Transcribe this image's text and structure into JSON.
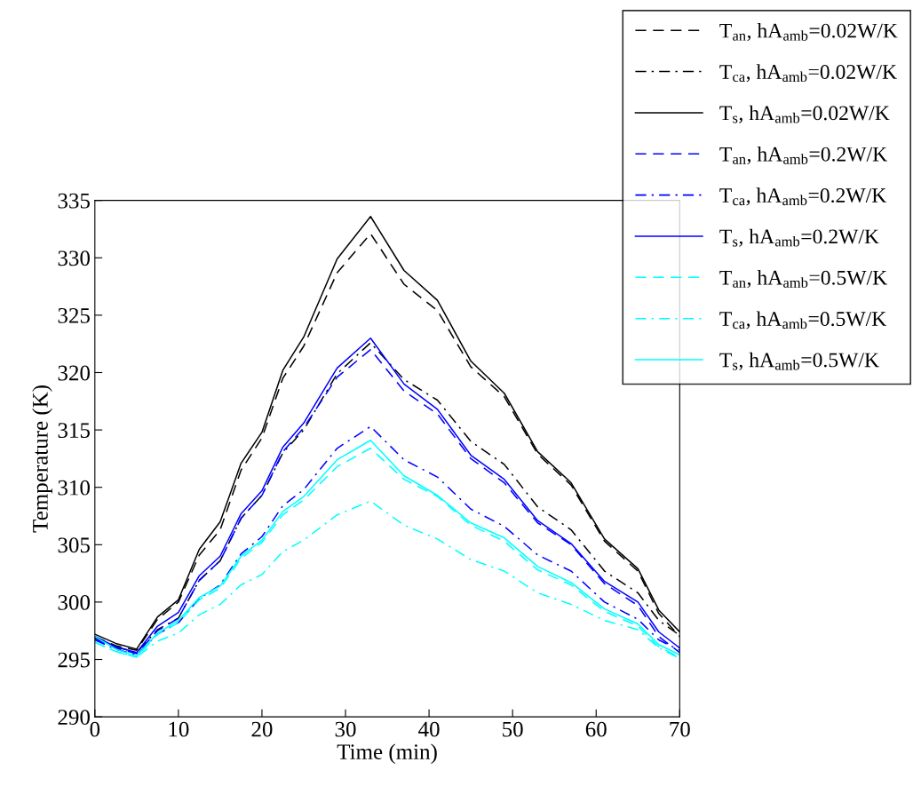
{
  "chart_data": {
    "type": "line",
    "xlabel": "Time (min)",
    "ylabel": "Temperature (K)",
    "x": [
      0,
      2.5,
      5,
      7.5,
      10,
      12.5,
      15,
      17.5,
      20,
      22.5,
      25,
      29,
      33,
      37,
      41,
      45,
      49,
      53,
      57,
      61,
      65,
      67.5,
      70
    ],
    "xlim": [
      0,
      70
    ],
    "xticks": [
      0,
      10,
      20,
      30,
      40,
      50,
      60,
      70
    ],
    "ylim": [
      290,
      335
    ],
    "yticks": [
      290,
      295,
      300,
      305,
      310,
      315,
      320,
      325,
      330,
      335
    ],
    "grid": false,
    "legend": "top right",
    "marker": "none",
    "series": [
      {
        "name": "T$_{an}$, hA$_{amb}$=0.02W/K",
        "color": "#000000",
        "line_style": "dashed",
        "values": [
          297.0,
          296.2,
          295.8,
          298.5,
          300.0,
          304.1,
          306.3,
          311.5,
          314.3,
          319.5,
          322.3,
          328.7,
          332.1,
          327.7,
          325.4,
          320.5,
          317.9,
          312.9,
          310.2,
          305.3,
          302.7,
          299.0,
          297.0
        ]
      },
      {
        "name": "T$_{ca}$, hA$_{amb}$=0.02W/K",
        "color": "#000000",
        "line_style": "dashdot",
        "values": [
          296.9,
          296.1,
          295.6,
          297.6,
          298.6,
          301.9,
          303.6,
          307.3,
          309.3,
          313.0,
          315.0,
          319.9,
          322.6,
          319.4,
          317.6,
          314.0,
          312.0,
          308.3,
          306.3,
          302.7,
          300.8,
          298.4,
          297.1
        ]
      },
      {
        "name": "T$_{s}$, hA$_{amb}$=0.02W/K",
        "color": "#000000",
        "line_style": "solid",
        "values": [
          297.2,
          296.4,
          295.9,
          298.7,
          300.2,
          304.6,
          307.0,
          312.1,
          314.8,
          320.2,
          323.1,
          329.9,
          333.6,
          328.9,
          326.3,
          321.0,
          318.2,
          313.1,
          310.4,
          305.5,
          302.9,
          299.3,
          297.4
        ]
      },
      {
        "name": "T$_{an}$, hA$_{amb}$=0.2W/K",
        "color": "#0000ff",
        "line_style": "dashed",
        "values": [
          296.8,
          296.0,
          295.5,
          297.5,
          298.6,
          301.9,
          303.6,
          307.3,
          309.3,
          313.1,
          315.2,
          319.6,
          322.0,
          318.4,
          316.4,
          312.5,
          310.4,
          306.9,
          305.0,
          301.6,
          299.7,
          297.0,
          295.6
        ]
      },
      {
        "name": "T$_{ca}$, hA$_{amb}$=0.2W/K",
        "color": "#0000ff",
        "line_style": "dashdot",
        "values": [
          296.7,
          295.9,
          295.4,
          297.2,
          298.2,
          300.3,
          301.5,
          304.2,
          305.7,
          308.4,
          309.8,
          313.4,
          315.3,
          312.4,
          310.9,
          308.1,
          306.6,
          304.1,
          302.7,
          300.0,
          298.5,
          296.7,
          295.8
        ]
      },
      {
        "name": "T$_{s}$, hA$_{amb}$=0.2W/K",
        "color": "#0000ff",
        "line_style": "solid",
        "values": [
          297.0,
          296.1,
          295.6,
          297.9,
          299.1,
          302.3,
          304.0,
          307.7,
          309.7,
          313.5,
          315.6,
          320.4,
          323.0,
          319.0,
          316.8,
          312.8,
          310.7,
          307.1,
          305.1,
          301.8,
          300.0,
          297.4,
          296.0
        ]
      },
      {
        "name": "T$_{an}$, hA$_{amb}$=0.5W/K",
        "color": "#00ffff",
        "line_style": "dashed",
        "values": [
          296.5,
          295.7,
          295.2,
          297.2,
          298.2,
          300.2,
          301.2,
          303.8,
          305.2,
          307.6,
          308.9,
          311.8,
          313.4,
          310.7,
          309.2,
          306.7,
          305.3,
          302.8,
          301.5,
          299.2,
          297.9,
          296.1,
          295.2
        ]
      },
      {
        "name": "T$_{ca}$, hA$_{amb}$=0.5W/K",
        "color": "#00ffff",
        "line_style": "dashdot",
        "values": [
          296.5,
          295.7,
          295.2,
          296.6,
          297.3,
          298.9,
          299.8,
          301.5,
          302.4,
          304.4,
          305.4,
          307.6,
          308.8,
          306.7,
          305.5,
          303.7,
          302.7,
          300.8,
          299.8,
          298.4,
          297.6,
          296.0,
          295.1
        ]
      },
      {
        "name": "T$_{s}$, hA$_{amb}$=0.5W/K",
        "color": "#00ffff",
        "line_style": "solid",
        "values": [
          297.0,
          295.9,
          295.3,
          297.3,
          298.4,
          300.4,
          301.4,
          304.0,
          305.4,
          307.9,
          309.2,
          312.4,
          314.1,
          311.0,
          309.3,
          306.9,
          305.6,
          303.1,
          301.7,
          299.4,
          298.1,
          296.3,
          295.4
        ]
      }
    ]
  }
}
